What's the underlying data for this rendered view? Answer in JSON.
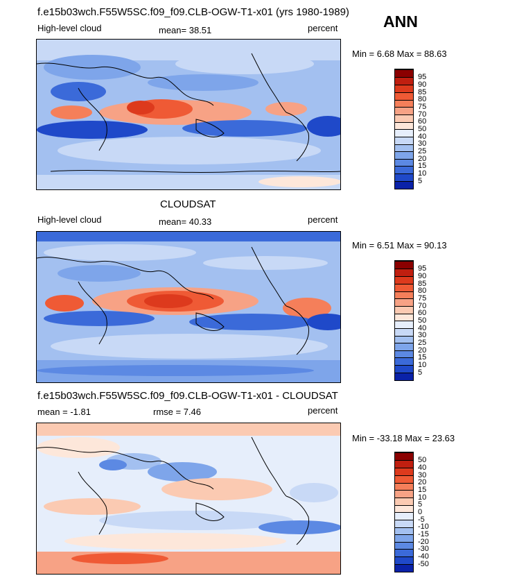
{
  "season": "ANN",
  "panels": [
    {
      "heading": "f.e15b03wch.F55W5SC.f09_f09.CLB-OGW-T1-x01 (yrs 1980-1989)",
      "left_label": "High-level cloud",
      "mid_label": "mean=  38.51",
      "right_label": "percent",
      "minmax": "Min =    6.68  Max =  88.63",
      "colorbar_labels": [
        "95",
        "90",
        "85",
        "80",
        "75",
        "70",
        "60",
        "50",
        "40",
        "30",
        "25",
        "20",
        "15",
        "10",
        "5"
      ]
    },
    {
      "heading": "CLOUDSAT",
      "left_label": "High-level cloud",
      "mid_label": "mean=  40.33",
      "right_label": "percent",
      "minmax": "Min =    6.51  Max =  90.13",
      "colorbar_labels": [
        "95",
        "90",
        "85",
        "80",
        "75",
        "70",
        "60",
        "50",
        "40",
        "30",
        "25",
        "20",
        "15",
        "10",
        "5"
      ]
    },
    {
      "heading": "f.e15b03wch.F55W5SC.f09_f09.CLB-OGW-T1-x01 - CLOUDSAT",
      "left_label": "mean =  -1.81",
      "mid_label": "rmse =   7.46",
      "right_label": "percent",
      "minmax": "Min = -33.18  Max =  23.63",
      "colorbar_labels": [
        "50",
        "40",
        "30",
        "20",
        "15",
        "10",
        "5",
        "0",
        "-5",
        "-10",
        "-15",
        "-20",
        "-30",
        "-40",
        "-50"
      ]
    }
  ],
  "colors": {
    "abs_scale": [
      "#8b0000",
      "#c01f10",
      "#dd3a1d",
      "#ef5a35",
      "#f57f5a",
      "#f7a285",
      "#fbcab2",
      "#fde7da",
      "#e6eefb",
      "#c8d9f6",
      "#a3c0f0",
      "#7ea5ea",
      "#5c89e3",
      "#3b6ad9",
      "#1f49c9",
      "#0a22a8"
    ],
    "diff_scale": [
      "#8b0000",
      "#c01f10",
      "#dd3a1d",
      "#ef5a35",
      "#f57f5a",
      "#f7a285",
      "#fbcab2",
      "#fde7da",
      "#e6eefb",
      "#c8d9f6",
      "#a3c0f0",
      "#7ea5ea",
      "#5c89e3",
      "#3b6ad9",
      "#1f49c9",
      "#0a22a8"
    ]
  }
}
